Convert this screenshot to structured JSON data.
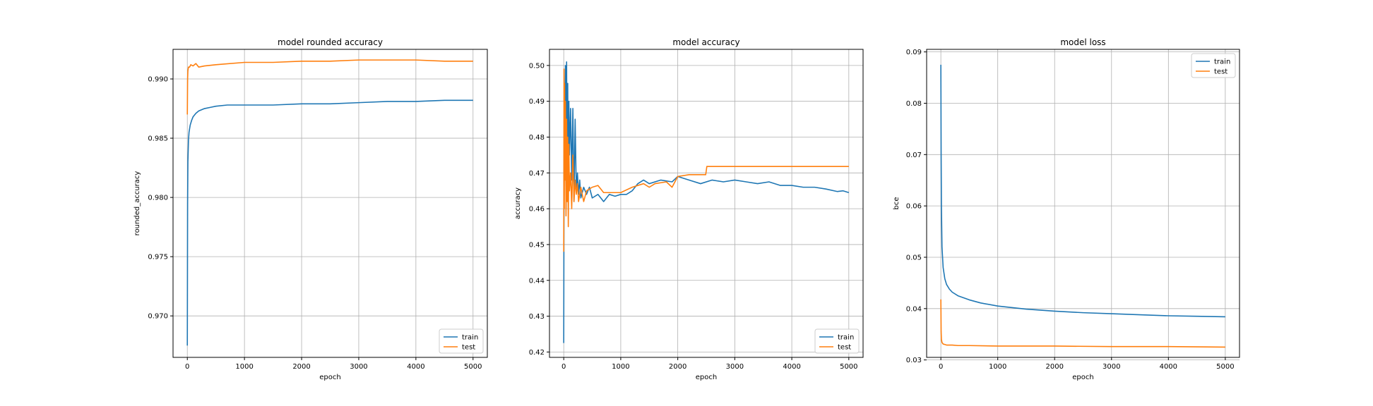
{
  "colors": {
    "train": "#1f77b4",
    "test": "#ff7f0e",
    "grid": "#b0b0b0",
    "frame": "#000000"
  },
  "chart_data": [
    {
      "type": "line",
      "title": "model rounded accuracy",
      "xlabel": "epoch",
      "ylabel": "rounded_accuracy",
      "xlim": [
        -250,
        5250
      ],
      "ylim": [
        0.9665,
        0.9925
      ],
      "xticks": [
        0,
        1000,
        2000,
        3000,
        4000,
        5000
      ],
      "xtick_labels": [
        "0",
        "1000",
        "2000",
        "3000",
        "4000",
        "5000"
      ],
      "yticks": [
        0.97,
        0.975,
        0.98,
        0.985,
        0.99
      ],
      "ytick_labels": [
        "0.970",
        "0.975",
        "0.980",
        "0.985",
        "0.990"
      ],
      "grid": true,
      "legend": "lower-right",
      "series": [
        {
          "name": "train",
          "color": "#1f77b4",
          "x": [
            0,
            5,
            10,
            20,
            30,
            50,
            75,
            100,
            150,
            200,
            300,
            400,
            500,
            700,
            1000,
            1500,
            2000,
            2500,
            3000,
            3500,
            4000,
            4500,
            5000
          ],
          "y": [
            0.9675,
            0.9795,
            0.983,
            0.9848,
            0.9855,
            0.9861,
            0.9865,
            0.9868,
            0.9871,
            0.9873,
            0.9875,
            0.9876,
            0.9877,
            0.9878,
            0.9878,
            0.9878,
            0.9879,
            0.9879,
            0.988,
            0.9881,
            0.9881,
            0.9882,
            0.9882
          ]
        },
        {
          "name": "test",
          "color": "#ff7f0e",
          "x": [
            0,
            5,
            10,
            20,
            40,
            60,
            100,
            150,
            200,
            300,
            500,
            1000,
            1500,
            2000,
            2500,
            3000,
            3500,
            4000,
            4500,
            5000
          ],
          "y": [
            0.987,
            0.99,
            0.9907,
            0.991,
            0.991,
            0.9912,
            0.9911,
            0.9913,
            0.991,
            0.9911,
            0.9912,
            0.9914,
            0.9914,
            0.9915,
            0.9915,
            0.9916,
            0.9916,
            0.9916,
            0.9915,
            0.9915
          ]
        }
      ]
    },
    {
      "type": "line",
      "title": "model accuracy",
      "xlabel": "epoch",
      "ylabel": "accuracy",
      "xlim": [
        -250,
        5250
      ],
      "ylim": [
        0.4185,
        0.5045
      ],
      "xticks": [
        0,
        1000,
        2000,
        3000,
        4000,
        5000
      ],
      "xtick_labels": [
        "0",
        "1000",
        "2000",
        "3000",
        "4000",
        "5000"
      ],
      "yticks": [
        0.42,
        0.43,
        0.44,
        0.45,
        0.46,
        0.47,
        0.48,
        0.49,
        0.5
      ],
      "ytick_labels": [
        "0.42",
        "0.43",
        "0.44",
        "0.45",
        "0.46",
        "0.47",
        "0.48",
        "0.49",
        "0.50"
      ],
      "grid": true,
      "legend": "lower-right",
      "series": [
        {
          "name": "train",
          "color": "#1f77b4",
          "x": [
            0,
            5,
            10,
            20,
            30,
            40,
            50,
            60,
            70,
            80,
            90,
            100,
            120,
            140,
            160,
            180,
            200,
            220,
            240,
            260,
            280,
            300,
            350,
            400,
            450,
            500,
            600,
            700,
            800,
            900,
            1000,
            1100,
            1200,
            1300,
            1400,
            1500,
            1700,
            1900,
            2000,
            2200,
            2400,
            2600,
            2800,
            3000,
            3200,
            3400,
            3600,
            3800,
            4000,
            4200,
            4400,
            4600,
            4800,
            4900,
            5000
          ],
          "y": [
            0.4225,
            0.47,
            0.495,
            0.48,
            0.5,
            0.46,
            0.501,
            0.47,
            0.495,
            0.465,
            0.49,
            0.475,
            0.488,
            0.468,
            0.488,
            0.462,
            0.485,
            0.465,
            0.47,
            0.464,
            0.468,
            0.463,
            0.466,
            0.464,
            0.466,
            0.463,
            0.464,
            0.462,
            0.464,
            0.4635,
            0.464,
            0.464,
            0.465,
            0.467,
            0.468,
            0.467,
            0.468,
            0.4675,
            0.469,
            0.468,
            0.467,
            0.468,
            0.4675,
            0.468,
            0.4675,
            0.467,
            0.4675,
            0.4665,
            0.4665,
            0.466,
            0.466,
            0.4655,
            0.4648,
            0.465,
            0.4645
          ]
        },
        {
          "name": "test",
          "color": "#ff7f0e",
          "x": [
            0,
            5,
            10,
            15,
            20,
            30,
            40,
            50,
            60,
            70,
            80,
            90,
            100,
            120,
            140,
            160,
            180,
            200,
            220,
            240,
            260,
            300,
            350,
            400,
            500,
            600,
            700,
            800,
            1000,
            1200,
            1400,
            1500,
            1600,
            1800,
            1900,
            2000,
            2200,
            2400,
            2490,
            2510,
            3000,
            3500,
            4000,
            4500,
            5000
          ],
          "y": [
            0.448,
            0.499,
            0.46,
            0.495,
            0.468,
            0.49,
            0.458,
            0.485,
            0.462,
            0.48,
            0.455,
            0.478,
            0.465,
            0.47,
            0.46,
            0.475,
            0.462,
            0.468,
            0.464,
            0.467,
            0.462,
            0.466,
            0.462,
            0.465,
            0.466,
            0.4665,
            0.4645,
            0.4645,
            0.4645,
            0.466,
            0.467,
            0.466,
            0.467,
            0.4675,
            0.466,
            0.469,
            0.4695,
            0.4695,
            0.4695,
            0.4718,
            0.4718,
            0.4718,
            0.4718,
            0.4718,
            0.4718
          ]
        }
      ]
    },
    {
      "type": "line",
      "title": "model loss",
      "xlabel": "epoch",
      "ylabel": "bce",
      "xlim": [
        -250,
        5250
      ],
      "ylim": [
        0.0305,
        0.0905
      ],
      "xticks": [
        0,
        1000,
        2000,
        3000,
        4000,
        5000
      ],
      "xtick_labels": [
        "0",
        "1000",
        "2000",
        "3000",
        "4000",
        "5000"
      ],
      "yticks": [
        0.03,
        0.04,
        0.05,
        0.06,
        0.07,
        0.08,
        0.09
      ],
      "ytick_labels": [
        "0.03",
        "0.04",
        "0.05",
        "0.06",
        "0.07",
        "0.08",
        "0.09"
      ],
      "grid": true,
      "legend": "upper-right",
      "series": [
        {
          "name": "train",
          "color": "#1f77b4",
          "x": [
            0,
            5,
            10,
            20,
            40,
            70,
            100,
            150,
            200,
            300,
            500,
            700,
            1000,
            1500,
            2000,
            2500,
            3000,
            3500,
            4000,
            4500,
            5000
          ],
          "y": [
            0.0875,
            0.07,
            0.06,
            0.052,
            0.048,
            0.0458,
            0.0447,
            0.0438,
            0.0432,
            0.0425,
            0.0417,
            0.0411,
            0.0405,
            0.0399,
            0.0395,
            0.0392,
            0.039,
            0.0388,
            0.0386,
            0.0385,
            0.0384
          ]
        },
        {
          "name": "test",
          "color": "#ff7f0e",
          "x": [
            0,
            5,
            10,
            20,
            40,
            70,
            100,
            200,
            300,
            500,
            1000,
            2000,
            3000,
            4000,
            5000
          ],
          "y": [
            0.0418,
            0.0355,
            0.034,
            0.0334,
            0.0331,
            0.033,
            0.0329,
            0.0329,
            0.0328,
            0.0328,
            0.0327,
            0.0327,
            0.0326,
            0.0326,
            0.0325
          ]
        }
      ]
    }
  ]
}
